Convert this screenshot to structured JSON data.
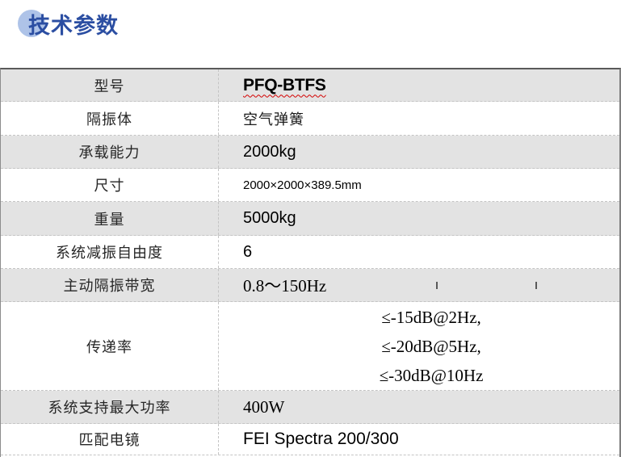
{
  "title": {
    "text": "技术参数"
  },
  "colors": {
    "title_blue": "#2b4ea2",
    "accent_circle_blue": "#aec3e8",
    "row_shade_gray": "#e3e3e3",
    "outer_border_gray": "#7f7f7f",
    "divider_dashed_gray": "#c4c4c4",
    "spellcheck_squiggle_red": "#d40000",
    "text_black": "#000000"
  },
  "table": {
    "rows": [
      {
        "label": "型号",
        "value": "PFQ-BTFS"
      },
      {
        "label": "隔振体",
        "value": "空气弹簧"
      },
      {
        "label": "承载能力",
        "value": "2000kg"
      },
      {
        "label": "尺寸",
        "value": "2000×2000×389.5mm"
      },
      {
        "label": "重量",
        "value": "5000kg"
      },
      {
        "label": "系统减振自由度",
        "value": "6"
      },
      {
        "label": "主动隔振带宽",
        "value": "0.8～150Hz"
      },
      {
        "label": "传递率",
        "value_lines": [
          "≤-15dB@2Hz,",
          "≤-20dB@5Hz,",
          "≤-30dB@10Hz"
        ]
      },
      {
        "label": "系统支持最大功率",
        "value": "400W"
      },
      {
        "label": "匹配电镜",
        "value": "FEI Spectra 200/300"
      }
    ]
  }
}
